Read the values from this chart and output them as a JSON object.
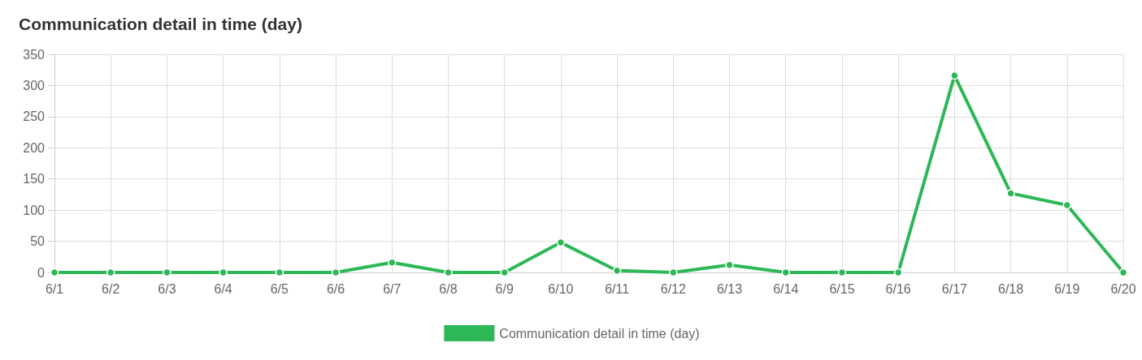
{
  "chart_data": {
    "type": "line",
    "title": "Communication detail in time (day)",
    "categories": [
      "6/1",
      "6/2",
      "6/3",
      "6/4",
      "6/5",
      "6/6",
      "6/7",
      "6/8",
      "6/9",
      "6/10",
      "6/11",
      "6/12",
      "6/13",
      "6/14",
      "6/15",
      "6/16",
      "6/17",
      "6/18",
      "6/19",
      "6/20"
    ],
    "series": [
      {
        "name": "Communication detail in time (day)",
        "color": "#2db757",
        "values": [
          0,
          0,
          0,
          0,
          0,
          0,
          16,
          0,
          0,
          48,
          3,
          0,
          12,
          0,
          0,
          0,
          316,
          127,
          108,
          0
        ]
      }
    ],
    "ylim": [
      0,
      350
    ],
    "yticks": [
      0,
      50,
      100,
      150,
      200,
      250,
      300,
      350
    ],
    "grid": true,
    "legend": "bottom",
    "marker": "circle",
    "line_style": "solid"
  }
}
